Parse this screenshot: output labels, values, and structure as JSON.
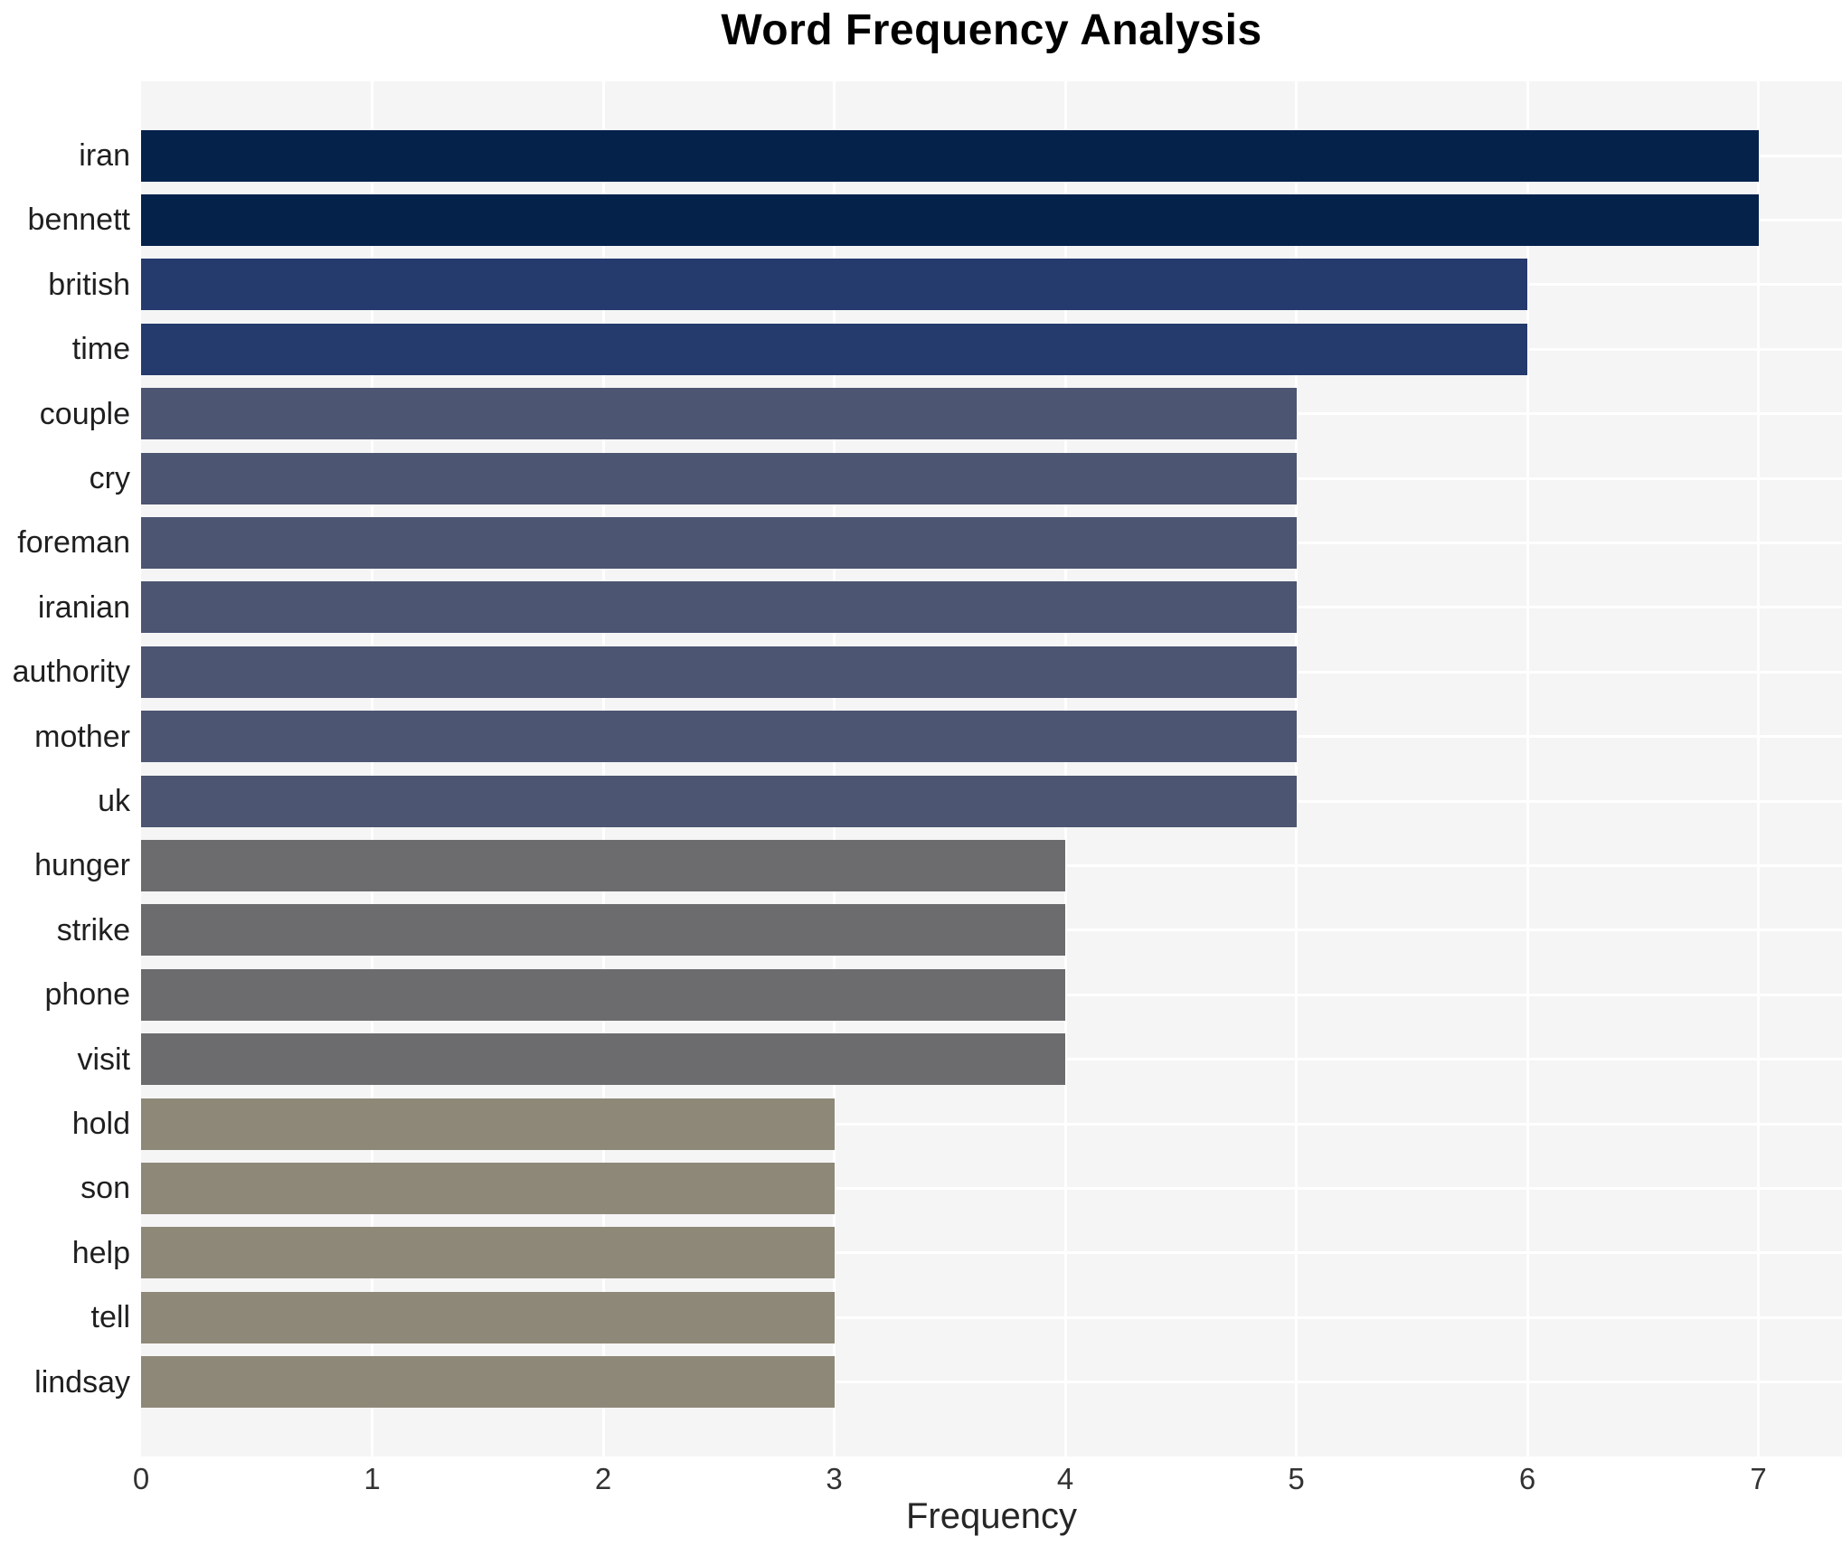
{
  "chart_data": {
    "type": "bar",
    "orientation": "horizontal",
    "title": "Word Frequency Analysis",
    "xlabel": "Frequency",
    "ylabel": "",
    "categories": [
      "iran",
      "bennett",
      "british",
      "time",
      "couple",
      "cry",
      "foreman",
      "iranian",
      "authority",
      "mother",
      "uk",
      "hunger",
      "strike",
      "phone",
      "visit",
      "hold",
      "son",
      "help",
      "tell",
      "lindsay"
    ],
    "values": [
      7,
      7,
      6,
      6,
      5,
      5,
      5,
      5,
      5,
      5,
      5,
      4,
      4,
      4,
      4,
      3,
      3,
      3,
      3,
      3
    ],
    "x_ticks": [
      0,
      1,
      2,
      3,
      4,
      5,
      6,
      7
    ],
    "xlim": [
      0,
      7.36
    ],
    "grid": true,
    "colors": {
      "bar_by_value": {
        "7": "#05224b",
        "6": "#253a6d",
        "5": "#4c5571",
        "4": "#6c6c6f",
        "3": "#8e8878"
      },
      "plot_background": "#f5f5f6",
      "gridline": "#ffffff",
      "label_text": "#1f1f1f",
      "title_text": "#000000"
    }
  }
}
